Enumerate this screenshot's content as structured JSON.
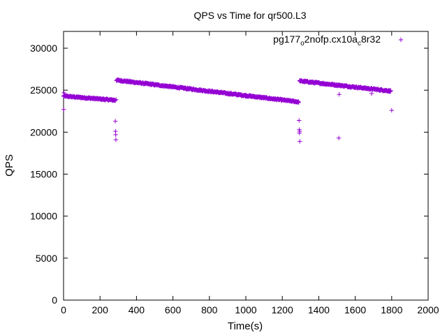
{
  "chart_data": {
    "type": "scatter",
    "title": "QPS vs Time for qr500.L3",
    "xlabel": "Time(s)",
    "ylabel": "QPS",
    "xlim": [
      0,
      2000
    ],
    "ylim": [
      0,
      32000
    ],
    "xticks": [
      0,
      200,
      400,
      600,
      800,
      1000,
      1200,
      1400,
      1600,
      1800,
      2000
    ],
    "yticks": [
      0,
      5000,
      10000,
      15000,
      20000,
      25000,
      30000
    ],
    "grid": false,
    "legend_position": "top-right",
    "marker": "+",
    "series": [
      {
        "name": "pg177_o2nofp.cx10a_c8r32",
        "legend_parts": [
          {
            "text": "pg177",
            "sub": false
          },
          {
            "text": "o",
            "sub": true
          },
          {
            "text": "2nofp.cx10a",
            "sub": false
          },
          {
            "text": "c",
            "sub": true
          },
          {
            "text": "8r32",
            "sub": false
          }
        ],
        "color": "#9400d3",
        "segments": [
          {
            "x_start": 0,
            "x_end": 285,
            "y_start": 24300,
            "y_end": 23800,
            "step": 2,
            "noise": 90
          },
          {
            "x_start": 290,
            "x_end": 1290,
            "y_start": 26200,
            "y_end": 23600,
            "step": 2,
            "noise": 90
          },
          {
            "x_start": 1295,
            "x_end": 1795,
            "y_start": 26100,
            "y_end": 24900,
            "step": 2,
            "noise": 90
          }
        ],
        "outliers": [
          {
            "x": 1,
            "y": 22700
          },
          {
            "x": 2,
            "y": 24700
          },
          {
            "x": 284,
            "y": 21300
          },
          {
            "x": 285,
            "y": 20100
          },
          {
            "x": 286,
            "y": 19700
          },
          {
            "x": 287,
            "y": 19100
          },
          {
            "x": 288,
            "y": 23900
          },
          {
            "x": 1292,
            "y": 21400
          },
          {
            "x": 1293,
            "y": 20300
          },
          {
            "x": 1294,
            "y": 19900
          },
          {
            "x": 1295,
            "y": 20100
          },
          {
            "x": 1296,
            "y": 18900
          },
          {
            "x": 1510,
            "y": 19300
          },
          {
            "x": 1512,
            "y": 24500
          },
          {
            "x": 1690,
            "y": 24600
          },
          {
            "x": 1800,
            "y": 22600
          }
        ]
      }
    ]
  }
}
